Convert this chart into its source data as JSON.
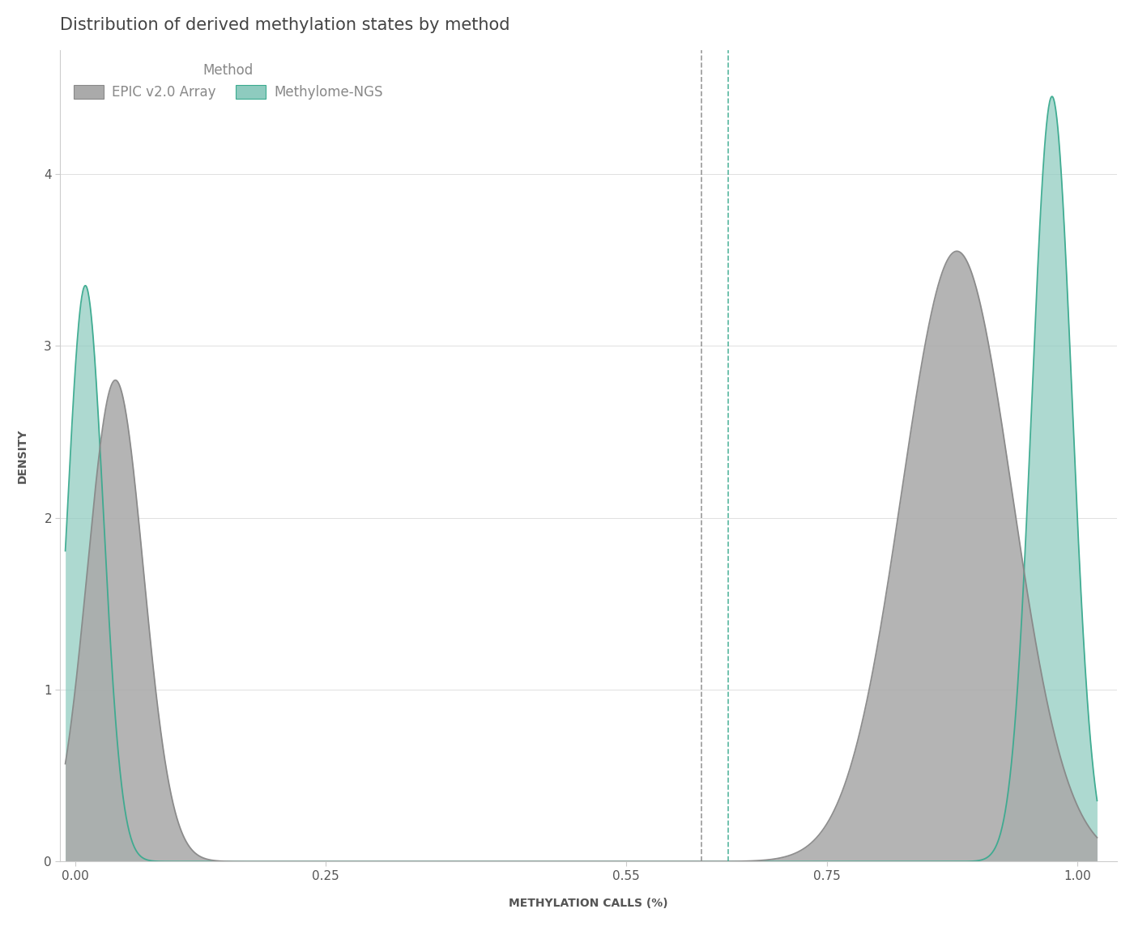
{
  "title": "Distribution of derived methylation states by method",
  "xlabel": "METHYLATION CALLS (%)",
  "ylabel": "DENSITY",
  "legend_title": "Method",
  "legend_labels": [
    "EPIC v2.0 Array",
    "Methylome-NGS"
  ],
  "epic_fill_color": "#aaaaaa",
  "epic_line_color": "#888888",
  "ngs_fill_color": "#8ecbbf",
  "ngs_line_color": "#3aaa8f",
  "epic_vline_x": 0.625,
  "ngs_vline_x": 0.652,
  "epic_vline_color": "#888888",
  "ngs_vline_color": "#3aaa8f",
  "xlim": [
    -0.015,
    1.04
  ],
  "ylim": [
    0,
    4.72
  ],
  "xticks": [
    0.0,
    0.25,
    0.55,
    0.75,
    1.0
  ],
  "xtick_labels": [
    "0.00",
    "0.25",
    "0.55",
    "0.75",
    "1.00"
  ],
  "yticks": [
    0,
    1,
    2,
    3,
    4
  ],
  "bg_color": "#ffffff",
  "fig_width": 14.0,
  "fig_height": 11.44,
  "title_fontsize": 15,
  "axis_label_fontsize": 10,
  "tick_fontsize": 11,
  "legend_fontsize": 12,
  "grid_color": "#e0e0e0",
  "spine_color": "#cccccc",
  "text_color": "#555555",
  "legend_text_color": "#888888",
  "title_color": "#444444"
}
